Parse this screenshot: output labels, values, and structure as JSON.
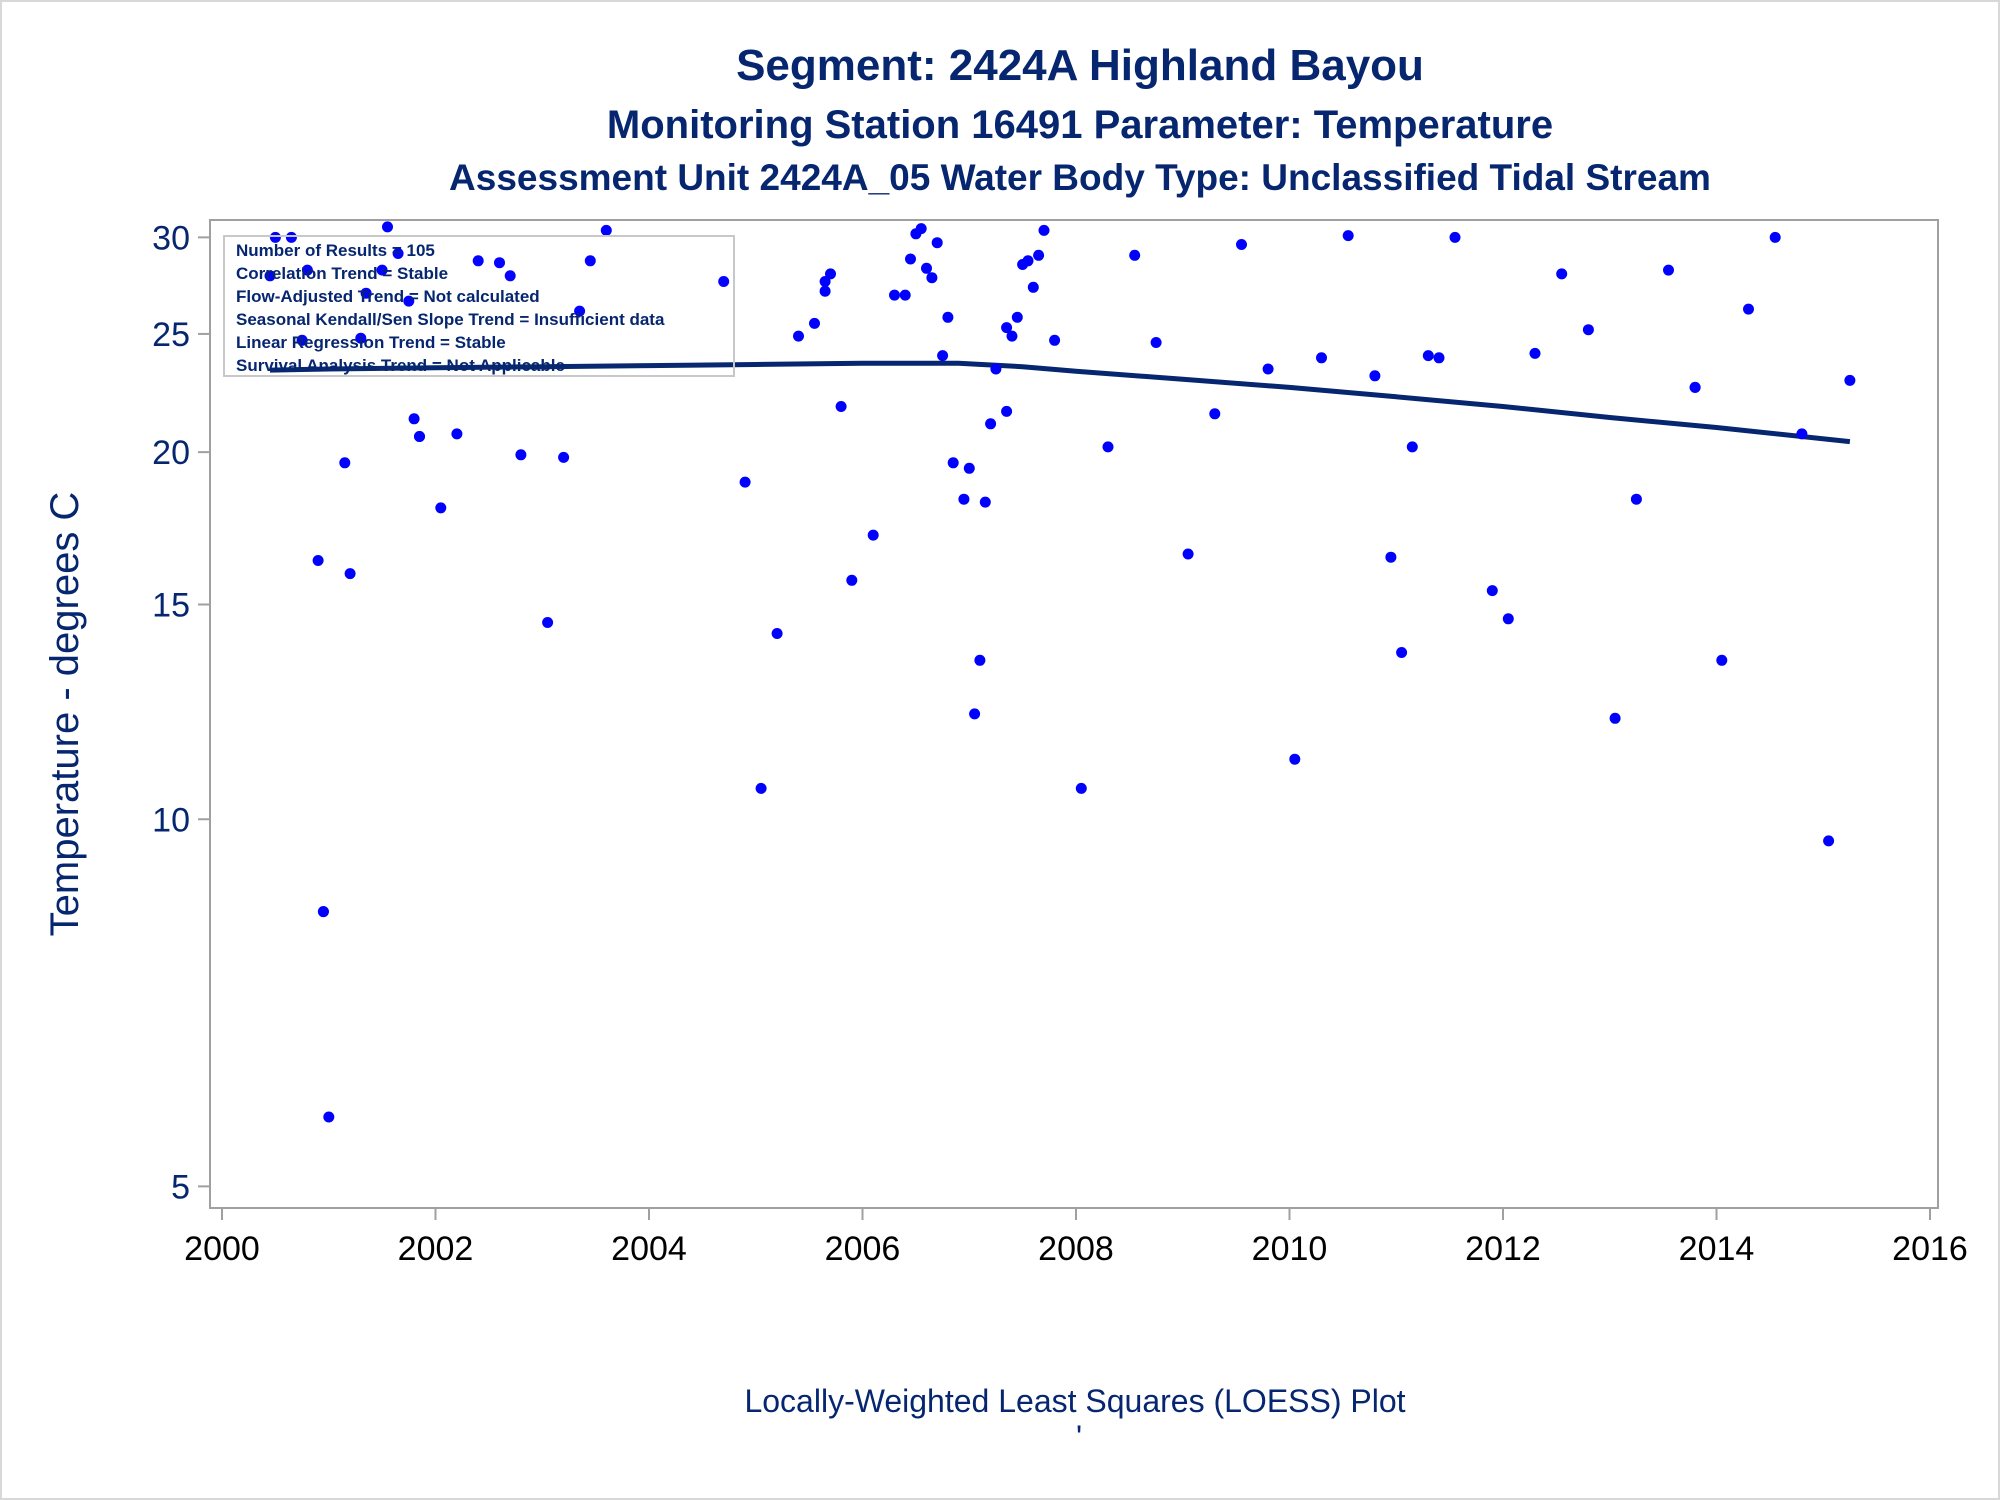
{
  "colors": {
    "point": "#0000ff",
    "line": "#06266f",
    "text": "#06266f",
    "frame": "#a0a0a0"
  },
  "chart_data": {
    "type": "scatter",
    "title": "Segment: 2424A  Highland Bayou",
    "subtitle": "Monitoring Station 16491 Parameter: Temperature",
    "subtitle2": "Assessment Unit 2424A_05   Water Body Type: Unclassified Tidal Stream",
    "xlabel": "",
    "ylabel": "Temperature - degrees C",
    "footnote": "Locally-Weighted Least Squares (LOESS) Plot",
    "footnote_mark": "'",
    "y_scale": "log",
    "xlim": [
      2000,
      2016
    ],
    "ylim": [
      4.8,
      31
    ],
    "x_ticks": [
      2000,
      2002,
      2004,
      2006,
      2008,
      2010,
      2012,
      2014,
      2016
    ],
    "x_tick_labels": [
      "2000",
      "2002",
      "2004",
      "2006",
      "2008",
      "2010",
      "2012",
      "2014",
      "2016"
    ],
    "y_ticks": [
      5,
      10,
      15,
      20,
      25,
      30
    ],
    "y_tick_labels": [
      "5",
      "10",
      "15",
      "20",
      "25",
      "30"
    ],
    "grid": false,
    "stats_box": [
      "Number of Results = 105",
      "Correlation Trend = Stable",
      "Flow-Adjusted Trend = Not calculated",
      "Seasonal Kendall/Sen Slope Trend = Insufficient data",
      "Linear Regression Trend = Stable",
      "Survival Analysis Trend = Not Applicable"
    ],
    "series": [
      {
        "type": "scatter",
        "points": [
          [
            2000.45,
            27.9
          ],
          [
            2000.5,
            30.0
          ],
          [
            2000.65,
            30.0
          ],
          [
            2000.75,
            24.7
          ],
          [
            2000.8,
            28.2
          ],
          [
            2000.9,
            16.3
          ],
          [
            2000.95,
            8.4
          ],
          [
            2001.0,
            5.7
          ],
          [
            2001.15,
            19.6
          ],
          [
            2001.2,
            15.9
          ],
          [
            2001.3,
            24.8
          ],
          [
            2001.35,
            27.0
          ],
          [
            2001.5,
            28.2
          ],
          [
            2001.55,
            30.6
          ],
          [
            2001.65,
            29.1
          ],
          [
            2001.75,
            26.6
          ],
          [
            2001.8,
            21.3
          ],
          [
            2001.85,
            20.6
          ],
          [
            2002.05,
            18.0
          ],
          [
            2002.2,
            20.7
          ],
          [
            2002.4,
            28.7
          ],
          [
            2002.6,
            28.6
          ],
          [
            2002.7,
            27.9
          ],
          [
            2002.8,
            19.9
          ],
          [
            2003.05,
            14.5
          ],
          [
            2003.2,
            19.8
          ],
          [
            2003.35,
            26.1
          ],
          [
            2003.45,
            28.7
          ],
          [
            2003.6,
            30.4
          ],
          [
            2004.7,
            27.6
          ],
          [
            2004.9,
            18.9
          ],
          [
            2005.05,
            10.6
          ],
          [
            2005.2,
            14.2
          ],
          [
            2005.4,
            24.9
          ],
          [
            2005.55,
            25.5
          ],
          [
            2005.65,
            27.1
          ],
          [
            2005.65,
            27.6
          ],
          [
            2005.7,
            28.0
          ],
          [
            2005.8,
            21.8
          ],
          [
            2005.9,
            15.7
          ],
          [
            2006.1,
            17.1
          ],
          [
            2006.3,
            26.9
          ],
          [
            2006.4,
            26.9
          ],
          [
            2006.45,
            28.8
          ],
          [
            2006.5,
            30.2
          ],
          [
            2006.55,
            30.5
          ],
          [
            2006.6,
            28.3
          ],
          [
            2006.65,
            27.8
          ],
          [
            2006.7,
            29.7
          ],
          [
            2006.75,
            24.0
          ],
          [
            2006.8,
            25.8
          ],
          [
            2006.85,
            19.6
          ],
          [
            2006.95,
            18.3
          ],
          [
            2007.0,
            19.4
          ],
          [
            2007.05,
            12.2
          ],
          [
            2007.1,
            13.5
          ],
          [
            2007.15,
            18.2
          ],
          [
            2007.2,
            21.1
          ],
          [
            2007.25,
            23.4
          ],
          [
            2007.35,
            21.6
          ],
          [
            2007.35,
            25.3
          ],
          [
            2007.4,
            24.9
          ],
          [
            2007.45,
            25.8
          ],
          [
            2007.5,
            28.5
          ],
          [
            2007.55,
            28.7
          ],
          [
            2007.6,
            27.3
          ],
          [
            2007.65,
            29.0
          ],
          [
            2007.7,
            30.4
          ],
          [
            2007.8,
            24.7
          ],
          [
            2008.05,
            10.6
          ],
          [
            2008.3,
            20.2
          ],
          [
            2008.55,
            29.0
          ],
          [
            2008.75,
            24.6
          ],
          [
            2009.05,
            16.5
          ],
          [
            2009.3,
            21.5
          ],
          [
            2009.55,
            29.6
          ],
          [
            2009.8,
            23.4
          ],
          [
            2010.05,
            11.2
          ],
          [
            2010.3,
            23.9
          ],
          [
            2010.55,
            30.1
          ],
          [
            2010.8,
            23.1
          ],
          [
            2010.95,
            16.4
          ],
          [
            2011.05,
            13.7
          ],
          [
            2011.15,
            20.2
          ],
          [
            2011.3,
            24.0
          ],
          [
            2011.4,
            23.9
          ],
          [
            2011.55,
            30.0
          ],
          [
            2011.9,
            15.4
          ],
          [
            2012.05,
            14.6
          ],
          [
            2012.3,
            24.1
          ],
          [
            2012.55,
            28.0
          ],
          [
            2012.8,
            25.2
          ],
          [
            2013.05,
            12.1
          ],
          [
            2013.25,
            18.3
          ],
          [
            2013.55,
            28.2
          ],
          [
            2013.8,
            22.6
          ],
          [
            2014.05,
            13.5
          ],
          [
            2014.3,
            26.2
          ],
          [
            2014.55,
            30.0
          ],
          [
            2014.8,
            20.7
          ],
          [
            2015.05,
            9.6
          ],
          [
            2015.25,
            22.9
          ],
          [
            2001.85,
            20.6
          ],
          [
            2000.95,
            8.4
          ],
          [
            2013.8,
            22.6
          ]
        ]
      },
      {
        "type": "line",
        "points": [
          [
            2000.45,
            23.35
          ],
          [
            2001.0,
            23.4
          ],
          [
            2002.0,
            23.45
          ],
          [
            2003.0,
            23.5
          ],
          [
            2004.0,
            23.55
          ],
          [
            2005.0,
            23.6
          ],
          [
            2006.0,
            23.65
          ],
          [
            2006.9,
            23.65
          ],
          [
            2007.5,
            23.5
          ],
          [
            2008.0,
            23.3
          ],
          [
            2009.0,
            22.95
          ],
          [
            2010.0,
            22.6
          ],
          [
            2011.0,
            22.2
          ],
          [
            2012.0,
            21.8
          ],
          [
            2013.0,
            21.35
          ],
          [
            2014.0,
            20.95
          ],
          [
            2015.25,
            20.4
          ]
        ]
      }
    ]
  }
}
